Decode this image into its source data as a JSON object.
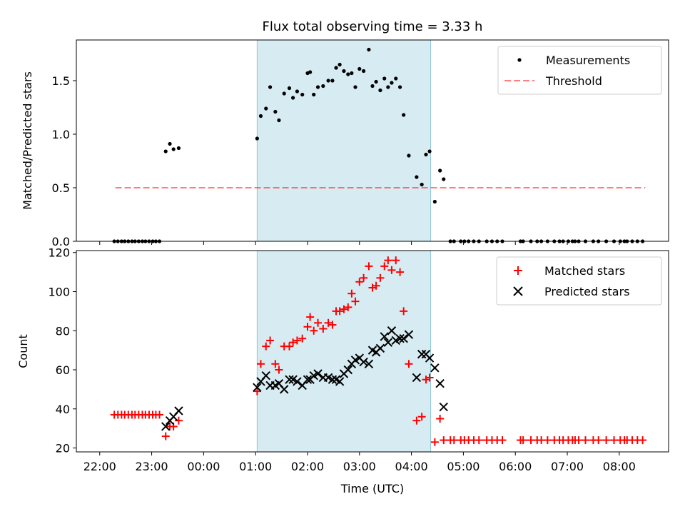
{
  "figure": {
    "title": "Flux total observing time = 3.33 h",
    "xlabel": "Time (UTC)",
    "highlight_color": "#add8e6"
  },
  "chart_data": [
    {
      "type": "scatter",
      "panel": "top",
      "xlabel": "",
      "ylabel": "Matched/Predicted stars",
      "ylim": [
        0,
        1.88
      ],
      "yticks": [
        0.0,
        0.5,
        1.0,
        1.5
      ],
      "ytick_labels": [
        "0.0",
        "0.5",
        "1.0",
        "1.5"
      ],
      "x_ticks_hours": [
        22,
        23,
        24,
        25,
        26,
        27,
        28,
        29,
        30,
        31,
        32
      ],
      "highlight_span_hours": [
        25.03,
        28.37
      ],
      "legend_position": "upper right",
      "threshold": {
        "name": "Threshold",
        "value": 0.5,
        "x_range_hours": [
          22.3,
          32.5
        ],
        "color": "#ff0000",
        "alpha": 0.5,
        "style": "dashed"
      },
      "series": [
        {
          "name": "Measurements",
          "marker": "dot",
          "color": "#000000",
          "points": [
            [
              22.28,
              0
            ],
            [
              22.35,
              0
            ],
            [
              22.42,
              0
            ],
            [
              22.48,
              0
            ],
            [
              22.55,
              0
            ],
            [
              22.62,
              0
            ],
            [
              22.68,
              0
            ],
            [
              22.75,
              0
            ],
            [
              22.82,
              0
            ],
            [
              22.88,
              0
            ],
            [
              22.95,
              0
            ],
            [
              23.02,
              0
            ],
            [
              23.08,
              0
            ],
            [
              23.15,
              0
            ],
            [
              23.27,
              0.84
            ],
            [
              23.35,
              0.91
            ],
            [
              23.42,
              0.86
            ],
            [
              23.52,
              0.87
            ],
            [
              25.03,
              0.96
            ],
            [
              25.1,
              1.17
            ],
            [
              25.2,
              1.24
            ],
            [
              25.28,
              1.44
            ],
            [
              25.38,
              1.21
            ],
            [
              25.45,
              1.13
            ],
            [
              25.55,
              1.38
            ],
            [
              25.65,
              1.43
            ],
            [
              25.72,
              1.34
            ],
            [
              25.8,
              1.4
            ],
            [
              25.9,
              1.37
            ],
            [
              26.0,
              1.57
            ],
            [
              26.05,
              1.58
            ],
            [
              26.12,
              1.37
            ],
            [
              26.2,
              1.44
            ],
            [
              26.3,
              1.45
            ],
            [
              26.4,
              1.5
            ],
            [
              26.48,
              1.5
            ],
            [
              26.55,
              1.62
            ],
            [
              26.62,
              1.65
            ],
            [
              26.7,
              1.59
            ],
            [
              26.78,
              1.56
            ],
            [
              26.85,
              1.57
            ],
            [
              26.92,
              1.44
            ],
            [
              27.0,
              1.61
            ],
            [
              27.08,
              1.59
            ],
            [
              27.18,
              1.79
            ],
            [
              27.25,
              1.45
            ],
            [
              27.32,
              1.49
            ],
            [
              27.4,
              1.41
            ],
            [
              27.48,
              1.52
            ],
            [
              27.55,
              1.44
            ],
            [
              27.62,
              1.48
            ],
            [
              27.7,
              1.52
            ],
            [
              27.78,
              1.44
            ],
            [
              27.85,
              1.18
            ],
            [
              27.95,
              0.8
            ],
            [
              28.1,
              0.6
            ],
            [
              28.2,
              0.53
            ],
            [
              28.28,
              0.81
            ],
            [
              28.35,
              0.84
            ],
            [
              28.45,
              0.37
            ],
            [
              28.55,
              0.66
            ],
            [
              28.62,
              0.58
            ],
            [
              28.75,
              0
            ],
            [
              28.82,
              0
            ],
            [
              28.95,
              0
            ],
            [
              29.02,
              0
            ],
            [
              29.1,
              0
            ],
            [
              29.2,
              0
            ],
            [
              29.3,
              0
            ],
            [
              29.45,
              0
            ],
            [
              29.55,
              0
            ],
            [
              29.65,
              0
            ],
            [
              29.75,
              0
            ],
            [
              30.1,
              0
            ],
            [
              30.15,
              0
            ],
            [
              30.3,
              0
            ],
            [
              30.42,
              0
            ],
            [
              30.5,
              0
            ],
            [
              30.62,
              0
            ],
            [
              30.75,
              0
            ],
            [
              30.85,
              0
            ],
            [
              30.92,
              0
            ],
            [
              31.02,
              0
            ],
            [
              31.1,
              0
            ],
            [
              31.15,
              0
            ],
            [
              31.22,
              0
            ],
            [
              31.35,
              0
            ],
            [
              31.5,
              0
            ],
            [
              31.6,
              0
            ],
            [
              31.75,
              0
            ],
            [
              31.9,
              0
            ],
            [
              32.02,
              0
            ],
            [
              32.1,
              0
            ],
            [
              32.15,
              0
            ],
            [
              32.25,
              0
            ],
            [
              32.35,
              0
            ],
            [
              32.45,
              0
            ]
          ]
        }
      ]
    },
    {
      "type": "scatter",
      "panel": "bottom",
      "xlabel": "Time (UTC)",
      "ylabel": "Count",
      "ylim": [
        18,
        121
      ],
      "yticks": [
        20,
        40,
        60,
        80,
        100,
        120
      ],
      "ytick_labels": [
        "20",
        "40",
        "60",
        "80",
        "100",
        "120"
      ],
      "x_ticks_hours": [
        22,
        23,
        24,
        25,
        26,
        27,
        28,
        29,
        30,
        31,
        32
      ],
      "x_tick_labels": [
        "22:00",
        "23:00",
        "00:00",
        "01:00",
        "02:00",
        "03:00",
        "04:00",
        "05:00",
        "06:00",
        "07:00",
        "08:00"
      ],
      "highlight_span_hours": [
        25.03,
        28.37
      ],
      "legend_position": "upper right",
      "series": [
        {
          "name": "Matched stars",
          "marker": "plus",
          "color": "#ff0000",
          "points": [
            [
              22.28,
              37
            ],
            [
              22.35,
              37
            ],
            [
              22.42,
              37
            ],
            [
              22.48,
              37
            ],
            [
              22.55,
              37
            ],
            [
              22.62,
              37
            ],
            [
              22.68,
              37
            ],
            [
              22.75,
              37
            ],
            [
              22.82,
              37
            ],
            [
              22.88,
              37
            ],
            [
              22.95,
              37
            ],
            [
              23.02,
              37
            ],
            [
              23.08,
              37
            ],
            [
              23.15,
              37
            ],
            [
              23.27,
              26
            ],
            [
              23.35,
              31
            ],
            [
              23.42,
              31
            ],
            [
              23.52,
              34
            ],
            [
              25.03,
              49
            ],
            [
              25.1,
              63
            ],
            [
              25.2,
              72
            ],
            [
              25.28,
              75
            ],
            [
              25.38,
              63
            ],
            [
              25.45,
              60
            ],
            [
              25.55,
              72
            ],
            [
              25.65,
              72
            ],
            [
              25.72,
              74
            ],
            [
              25.8,
              75
            ],
            [
              25.9,
              76
            ],
            [
              26.0,
              82
            ],
            [
              26.05,
              87
            ],
            [
              26.12,
              80
            ],
            [
              26.2,
              84
            ],
            [
              26.3,
              81
            ],
            [
              26.4,
              84
            ],
            [
              26.48,
              83
            ],
            [
              26.55,
              90
            ],
            [
              26.62,
              90
            ],
            [
              26.7,
              91
            ],
            [
              26.78,
              92
            ],
            [
              26.85,
              99
            ],
            [
              26.92,
              95
            ],
            [
              27.0,
              105
            ],
            [
              27.08,
              107
            ],
            [
              27.18,
              113
            ],
            [
              27.25,
              102
            ],
            [
              27.32,
              103
            ],
            [
              27.4,
              107
            ],
            [
              27.48,
              113
            ],
            [
              27.55,
              116
            ],
            [
              27.62,
              111
            ],
            [
              27.7,
              116
            ],
            [
              27.78,
              110
            ],
            [
              27.85,
              90
            ],
            [
              27.95,
              63
            ],
            [
              28.1,
              34
            ],
            [
              28.2,
              36
            ],
            [
              28.28,
              55
            ],
            [
              28.35,
              56
            ],
            [
              28.45,
              23
            ],
            [
              28.55,
              35
            ],
            [
              28.62,
              24
            ],
            [
              28.75,
              24
            ],
            [
              28.82,
              24
            ],
            [
              28.95,
              24
            ],
            [
              29.02,
              24
            ],
            [
              29.1,
              24
            ],
            [
              29.2,
              24
            ],
            [
              29.3,
              24
            ],
            [
              29.45,
              24
            ],
            [
              29.55,
              24
            ],
            [
              29.65,
              24
            ],
            [
              29.75,
              24
            ],
            [
              30.1,
              24
            ],
            [
              30.15,
              24
            ],
            [
              30.3,
              24
            ],
            [
              30.42,
              24
            ],
            [
              30.5,
              24
            ],
            [
              30.62,
              24
            ],
            [
              30.75,
              24
            ],
            [
              30.85,
              24
            ],
            [
              30.92,
              24
            ],
            [
              31.02,
              24
            ],
            [
              31.1,
              24
            ],
            [
              31.15,
              24
            ],
            [
              31.22,
              24
            ],
            [
              31.35,
              24
            ],
            [
              31.5,
              24
            ],
            [
              31.6,
              24
            ],
            [
              31.75,
              24
            ],
            [
              31.9,
              24
            ],
            [
              32.02,
              24
            ],
            [
              32.1,
              24
            ],
            [
              32.15,
              24
            ],
            [
              32.25,
              24
            ],
            [
              32.35,
              24
            ],
            [
              32.45,
              24
            ]
          ]
        },
        {
          "name": "Predicted stars",
          "marker": "x",
          "color": "#000000",
          "points": [
            [
              23.27,
              31
            ],
            [
              23.35,
              34
            ],
            [
              23.42,
              36
            ],
            [
              23.52,
              39
            ],
            [
              25.03,
              51
            ],
            [
              25.1,
              54
            ],
            [
              25.2,
              57
            ],
            [
              25.28,
              52
            ],
            [
              25.38,
              52
            ],
            [
              25.45,
              53
            ],
            [
              25.55,
              50
            ],
            [
              25.65,
              55
            ],
            [
              25.72,
              55
            ],
            [
              25.8,
              54
            ],
            [
              25.9,
              52
            ],
            [
              26.0,
              55
            ],
            [
              26.05,
              55
            ],
            [
              26.12,
              57
            ],
            [
              26.2,
              58
            ],
            [
              26.3,
              56
            ],
            [
              26.4,
              56
            ],
            [
              26.48,
              55
            ],
            [
              26.55,
              55
            ],
            [
              26.62,
              54
            ],
            [
              26.7,
              58
            ],
            [
              26.78,
              60
            ],
            [
              26.85,
              63
            ],
            [
              26.92,
              65
            ],
            [
              27.0,
              66
            ],
            [
              27.08,
              64
            ],
            [
              27.18,
              63
            ],
            [
              27.25,
              70
            ],
            [
              27.32,
              69
            ],
            [
              27.4,
              71
            ],
            [
              27.48,
              77
            ],
            [
              27.55,
              74
            ],
            [
              27.62,
              80
            ],
            [
              27.7,
              75
            ],
            [
              27.78,
              76
            ],
            [
              27.85,
              76
            ],
            [
              27.95,
              78
            ],
            [
              28.1,
              56
            ],
            [
              28.2,
              68
            ],
            [
              28.28,
              68
            ],
            [
              28.35,
              66
            ],
            [
              28.45,
              61
            ],
            [
              28.55,
              53
            ],
            [
              28.62,
              41
            ]
          ]
        }
      ]
    }
  ]
}
